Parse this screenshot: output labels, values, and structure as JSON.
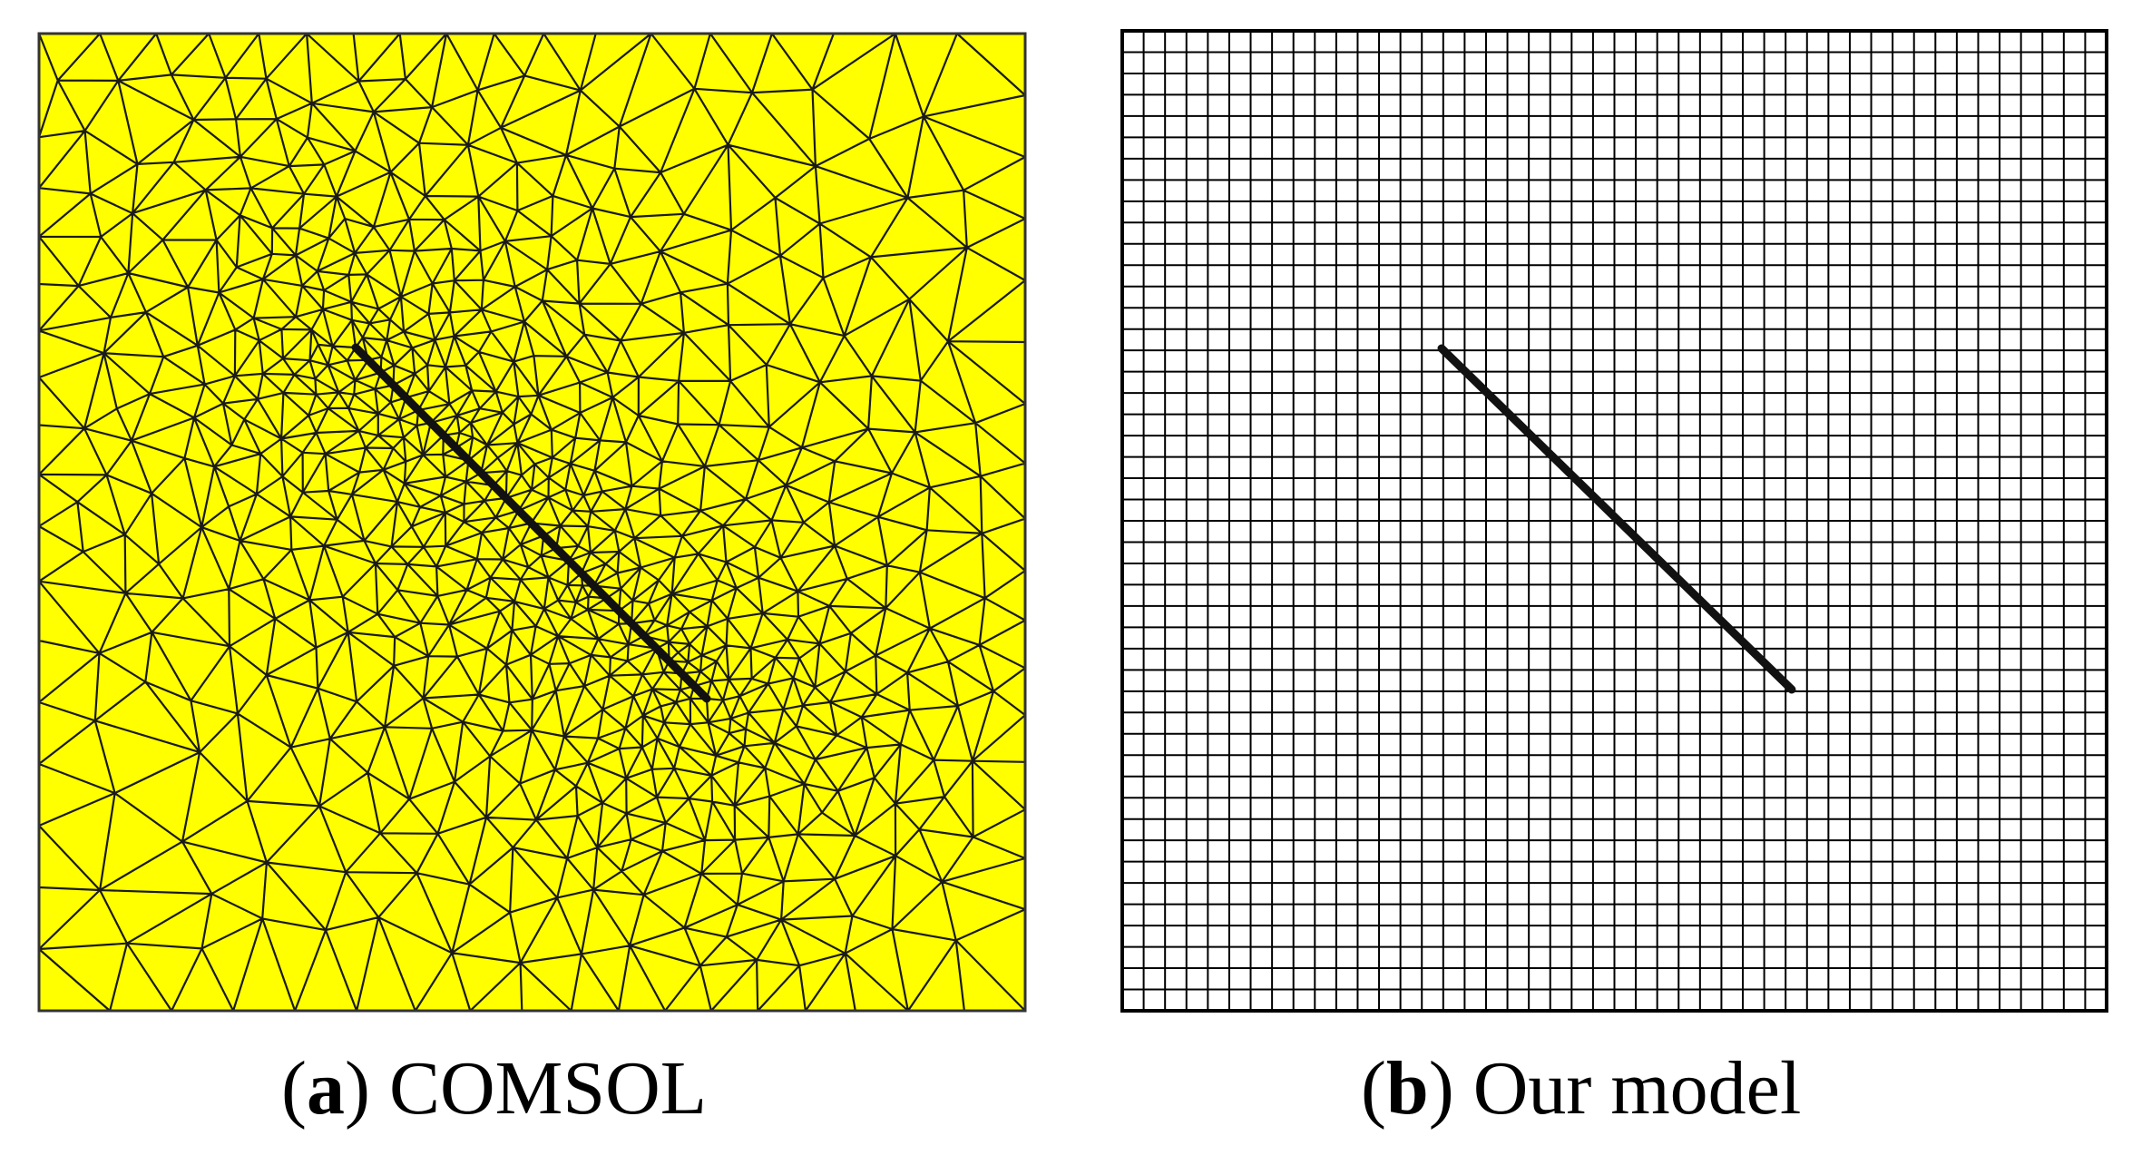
{
  "panels": [
    {
      "id": "a",
      "letter": "a",
      "label": "COMSOL",
      "mesh": "triangular",
      "fill_color": "#ffff00",
      "line_color": "#1a1a1a",
      "refinement": "locally refined around the fracture"
    },
    {
      "id": "b",
      "letter": "b",
      "label": "Our model",
      "mesh": "structured square grid",
      "grid_cells_per_side": 46,
      "fill_color": "#ffffff",
      "line_color": "#000000"
    }
  ],
  "fracture": {
    "color": "#111111"
  }
}
